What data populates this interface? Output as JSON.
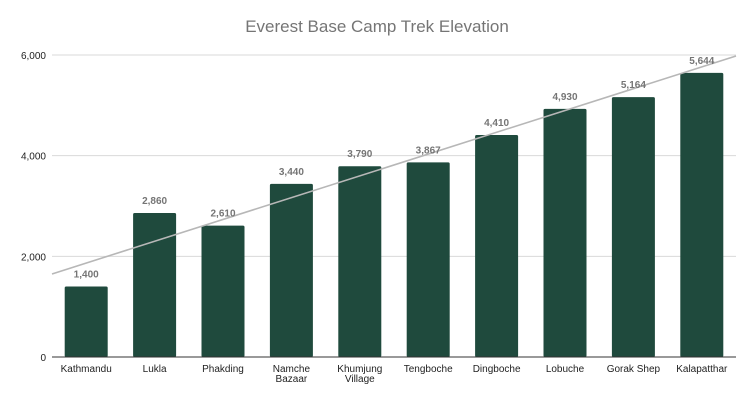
{
  "chart_data": {
    "type": "bar",
    "title": "Everest Base Camp Trek Elevation",
    "xlabel": "",
    "ylabel": "",
    "categories": [
      "Kathmandu",
      "Lukla",
      "Phakding",
      "Namche Bazaar",
      "Khumjung Village",
      "Tengboche",
      "Dingboche",
      "Lobuche",
      "Gorak Shep",
      "Kalapatthar"
    ],
    "category_lines": [
      [
        "Kathmandu"
      ],
      [
        "Lukla"
      ],
      [
        "Phakding"
      ],
      [
        "Namche",
        "Bazaar"
      ],
      [
        "Khumjung",
        "Village"
      ],
      [
        "Tengboche"
      ],
      [
        "Dingboche"
      ],
      [
        "Lobuche"
      ],
      [
        "Gorak Shep"
      ],
      [
        "Kalapatthar"
      ]
    ],
    "values": [
      1400,
      2860,
      2610,
      3440,
      3790,
      3867,
      4410,
      4930,
      5164,
      5644
    ],
    "data_labels": [
      "1,400",
      "2,860",
      "2,610",
      "3,440",
      "3,790",
      "3,867",
      "4,410",
      "4,930",
      "5,164",
      "5,644"
    ],
    "ylim": [
      0,
      6000
    ],
    "yticks": [
      0,
      2000,
      4000,
      6000
    ],
    "ytick_labels": [
      "0",
      "2,000",
      "4,000",
      "6,000"
    ],
    "trendline": {
      "type": "linear",
      "start_value": 1650,
      "end_value": 5980
    },
    "grid": true,
    "legend": "none",
    "colors": {
      "bar": "#1f4a3d",
      "trendline": "#b7b7b7",
      "grid": "#d9d9d9",
      "axis": "#333333",
      "title": "#757575",
      "data_label": "#757575"
    }
  }
}
